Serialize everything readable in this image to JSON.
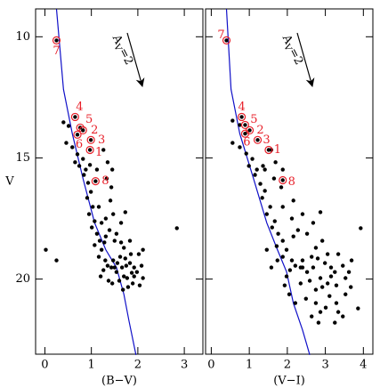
{
  "chart_data": [
    {
      "type": "scatter",
      "xlabel": "(B−V)",
      "ylabel": "V",
      "xlim": [
        -0.2,
        3.4
      ],
      "ylim": [
        23.1,
        8.85
      ],
      "xticks": [
        0,
        1,
        2,
        3
      ],
      "yticks": [
        10,
        15,
        20
      ],
      "show_ytick_labels": true,
      "stars": {
        "color": "#000000",
        "x": [
          0.4,
          0.51,
          0.46,
          0.59,
          0.7,
          0.82,
          0.74,
          0.88,
          0.97,
          0.65,
          0.84,
          0.93,
          0.99,
          0.91,
          1.03,
          0.95,
          1.07,
          1.01,
          1.12,
          1.18,
          1.07,
          1.22,
          1.16,
          1.3,
          1.35,
          1.26,
          1.43,
          1.2,
          1.54,
          1.47,
          1.62,
          1.73,
          1.83,
          1.92,
          2.02,
          1.7,
          1.83,
          1.54,
          1.39,
          1.64,
          1.31,
          1.47,
          1.73,
          1.41,
          1.16,
          1.31,
          1.45,
          1.6,
          1.77,
          1.89,
          1.98,
          2.08,
          2.11,
          1.68,
          1.79,
          1.5,
          1.92,
          1.66,
          2.04,
          1.85,
          1.35,
          1.45,
          1.43,
          1.33,
          1.12,
          1.26,
          2.84,
          0.02,
          0.25,
          1.22,
          1.5,
          1.64,
          2.11,
          1.87,
          1.7,
          1.56,
          1.28,
          1.37,
          1.75
        ],
        "y": [
          13.53,
          13.68,
          14.38,
          14.56,
          14.85,
          15.04,
          15.33,
          15.48,
          15.29,
          15.18,
          15.7,
          16.03,
          16.4,
          16.65,
          17.02,
          17.32,
          17.61,
          17.87,
          18.13,
          18.42,
          18.6,
          18.79,
          19.08,
          19.23,
          19.45,
          19.63,
          19.52,
          19.89,
          19.71,
          19.23,
          19.08,
          19.15,
          19.34,
          19.52,
          18.97,
          18.71,
          18.42,
          18.13,
          17.98,
          17.68,
          17.5,
          17.32,
          17.24,
          16.76,
          17.02,
          18.24,
          20.18,
          20.07,
          19.96,
          20.18,
          19.71,
          19.45,
          19.96,
          20.44,
          20.33,
          19.52,
          19.89,
          19.52,
          20.26,
          18.97,
          15.18,
          15.48,
          16.21,
          15.85,
          15.48,
          14.67,
          17.9,
          18.79,
          19.23,
          17.68,
          18.42,
          18.49,
          18.79,
          19.74,
          19.89,
          19.34,
          18.49,
          20.07,
          19.45
        ]
      },
      "marked": {
        "color": "#e8202a",
        "labels": [
          "7",
          "4",
          "5",
          "2",
          "6",
          "3",
          "1",
          "8"
        ],
        "x": [
          0.25,
          0.65,
          0.76,
          0.82,
          0.7,
          0.99,
          0.97,
          1.09
        ],
        "y": [
          10.15,
          13.31,
          13.75,
          13.86,
          14.04,
          14.26,
          14.67,
          15.96
        ]
      },
      "isochrone": {
        "color": "#1010c8",
        "x": [
          0.25,
          0.4,
          0.59,
          0.82,
          1.07,
          1.31,
          1.54,
          1.7,
          1.81,
          1.96
        ],
        "y": [
          8.86,
          12.17,
          14.0,
          15.85,
          17.68,
          18.79,
          19.52,
          20.63,
          21.73,
          23.13
        ]
      },
      "annotation": {
        "text": "A",
        "subscript": "V",
        "suffix": "=2"
      }
    },
    {
      "type": "scatter",
      "xlabel": "(V−I)",
      "xlim": [
        -0.15,
        4.25
      ],
      "ylim": [
        23.1,
        8.85
      ],
      "xticks": [
        0,
        1,
        2,
        3,
        4
      ],
      "yticks": [
        10,
        15,
        20
      ],
      "show_ytick_labels": false,
      "stars": {
        "color": "#000000",
        "x": [
          0.56,
          0.75,
          0.56,
          0.75,
          0.92,
          1.08,
          0.99,
          1.2,
          1.36,
          1.15,
          1.29,
          1.41,
          1.34,
          1.55,
          1.46,
          1.67,
          1.6,
          1.76,
          1.88,
          1.72,
          1.98,
          1.88,
          2.12,
          2.21,
          2.07,
          2.35,
          1.98,
          2.52,
          2.4,
          2.64,
          2.8,
          2.99,
          3.15,
          3.34,
          2.75,
          2.92,
          2.52,
          2.28,
          2.68,
          2.12,
          2.4,
          2.87,
          2.16,
          1.88,
          2.16,
          2.35,
          2.59,
          2.87,
          3.06,
          3.25,
          3.46,
          3.53,
          2.75,
          2.92,
          2.4,
          3.15,
          2.68,
          3.29,
          3.06,
          1.69,
          1.88,
          1.84,
          1.65,
          1.41,
          1.58,
          3.93,
          3.69,
          3.86,
          2.49,
          2.75,
          3.01,
          3.29,
          3.53,
          3.67,
          3.11,
          2.87,
          2.64,
          3.46,
          3.25,
          2.82,
          1.93,
          2.05,
          2.21,
          1.46,
          1.58,
          1.74,
          3.62,
          3.34
        ],
        "y": [
          13.46,
          13.64,
          14.38,
          14.56,
          14.82,
          15.04,
          15.33,
          15.48,
          15.33,
          15.7,
          16.07,
          16.36,
          16.65,
          17.02,
          17.32,
          17.61,
          17.87,
          18.13,
          18.42,
          18.64,
          18.79,
          19.08,
          19.23,
          19.45,
          19.63,
          19.52,
          19.89,
          19.71,
          19.23,
          19.08,
          19.15,
          19.34,
          19.52,
          18.97,
          18.71,
          18.42,
          18.13,
          17.98,
          17.68,
          17.5,
          17.32,
          17.24,
          16.76,
          17.02,
          18.24,
          20.18,
          20.07,
          19.96,
          20.18,
          19.71,
          19.45,
          19.96,
          20.44,
          20.33,
          19.52,
          19.89,
          19.52,
          20.26,
          18.97,
          15.18,
          15.48,
          16.21,
          15.85,
          15.48,
          14.67,
          17.9,
          19.23,
          21.21,
          20.81,
          20.99,
          21.18,
          20.99,
          20.63,
          20.33,
          20.7,
          21.36,
          21.54,
          21.54,
          21.8,
          21.8,
          20.26,
          20.63,
          20.99,
          18.79,
          19.52,
          19.23,
          19.71,
          21.36
        ]
      },
      "marked": {
        "color": "#e8202a",
        "labels": [
          "7",
          "4",
          "5",
          "2",
          "6",
          "3",
          "1",
          "8"
        ],
        "x": [
          0.4,
          0.8,
          0.89,
          1.01,
          0.89,
          1.22,
          1.51,
          1.88
        ],
        "y": [
          10.15,
          13.31,
          13.64,
          13.86,
          14.0,
          14.26,
          14.67,
          15.92
        ]
      },
      "isochrone": {
        "color": "#1010c8",
        "x": [
          0.4,
          0.52,
          0.75,
          1.11,
          1.46,
          1.74,
          1.98,
          2.16,
          2.4,
          2.59
        ],
        "y": [
          8.86,
          12.17,
          14.0,
          15.85,
          17.68,
          18.79,
          19.7,
          21.0,
          22.1,
          23.13
        ]
      },
      "annotation": {
        "text": "A",
        "subscript": "V",
        "suffix": "=2"
      }
    }
  ]
}
